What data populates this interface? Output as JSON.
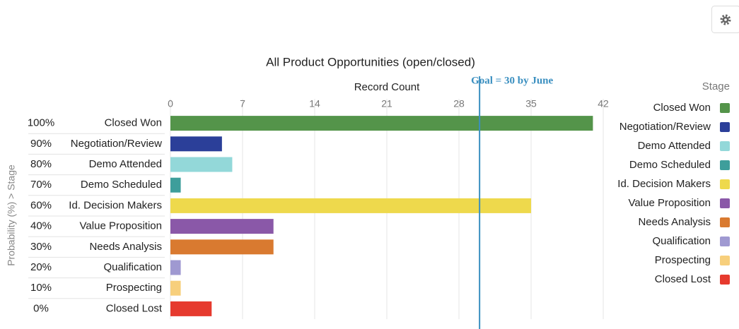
{
  "chart_data": {
    "type": "bar",
    "orientation": "horizontal",
    "title": "All Product Opportunities (open/closed)",
    "x_label": "Record Count",
    "y_label": "Probability (%) > Stage",
    "legend_title": "Stage",
    "groups": [
      "100%",
      "90%",
      "80%",
      "70%",
      "60%",
      "40%",
      "30%",
      "20%",
      "10%",
      "0%"
    ],
    "categories": [
      "Closed Won",
      "Negotiation/Review",
      "Demo Attended",
      "Demo Scheduled",
      "Id. Decision Makers",
      "Value Proposition",
      "Needs Analysis",
      "Qualification",
      "Prospecting",
      "Closed Lost"
    ],
    "values": [
      41,
      5,
      6,
      1,
      35,
      10,
      10,
      1,
      1,
      4
    ],
    "colors": [
      "#54944a",
      "#2b3f99",
      "#93d8d9",
      "#3e9e9b",
      "#eed94c",
      "#8a58a8",
      "#d97a30",
      "#9f99d1",
      "#f7cf7c",
      "#e63a2e"
    ],
    "xlim": [
      0,
      42
    ],
    "xticks": [
      0,
      7,
      14,
      21,
      28,
      35,
      42
    ],
    "grid": true,
    "legend": "right",
    "goal": {
      "label": "Goal = 30 by June",
      "value": 30,
      "color": "#3a8fc0"
    }
  }
}
